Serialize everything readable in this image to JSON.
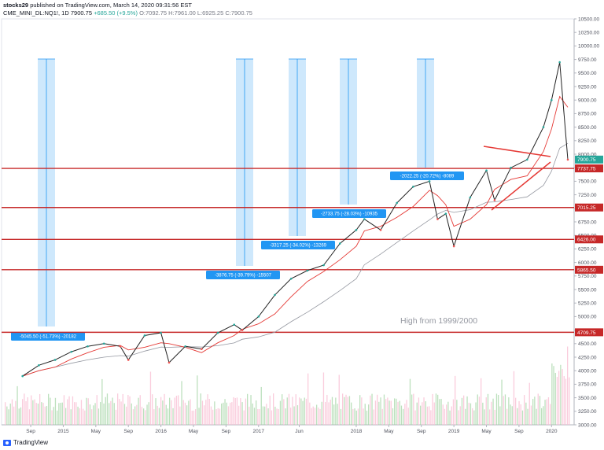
{
  "header": {
    "line1_user": "stocks29",
    "line1_rest": " published on TradingView.com, March 14, 2020 09:31:56 EST",
    "symbol": "CME_MINI_DL:NQ1!, 1D",
    "last": "7900.75",
    "change": "+685.50 (+9.5%)",
    "ohlc": "O:7092.75 H:7961.00 L:6925.25 C:7900.75"
  },
  "footer": {
    "brand": "TradingView"
  },
  "colors": {
    "up": "#26a69a",
    "down": "#ef5350",
    "hline": "#c62828",
    "blue": "#2196f3",
    "sma": "#9598a1",
    "ema": "#e53935"
  },
  "chart_data": {
    "type": "line",
    "ylim": [
      3000,
      10500
    ],
    "y_ticks": [
      "10500.00",
      "10250.00",
      "10000.00",
      "9750.00",
      "9500.00",
      "9250.00",
      "9000.00",
      "8750.00",
      "8500.00",
      "8250.00",
      "8000.00",
      "7750.00",
      "7500.00",
      "7250.00",
      "7000.00",
      "6750.00",
      "6500.00",
      "6250.00",
      "6000.00",
      "5750.00",
      "5500.00",
      "5250.00",
      "5000.00",
      "4750.00",
      "4500.00",
      "4250.00",
      "4000.00",
      "3750.00",
      "3500.00",
      "3250.00",
      "3000.00"
    ],
    "x_ticks": [
      "Sep",
      "2015",
      "May",
      "Sep",
      "2016",
      "May",
      "Sep",
      "2017",
      "Jun",
      "2018",
      "May",
      "Sep",
      "2019",
      "May",
      "Sep",
      "2020"
    ],
    "price_series": {
      "name": "NQ1!",
      "x": [
        "2014-08",
        "2014-10",
        "2014-12",
        "2015-02",
        "2015-04",
        "2015-06",
        "2015-08",
        "2015-09",
        "2015-11",
        "2016-01",
        "2016-02",
        "2016-04",
        "2016-06",
        "2016-08",
        "2016-10",
        "2016-11",
        "2017-01",
        "2017-03",
        "2017-05",
        "2017-07",
        "2017-09",
        "2017-11",
        "2018-01",
        "2018-02",
        "2018-04",
        "2018-06",
        "2018-08",
        "2018-10",
        "2018-11",
        "2018-12",
        "2019-01",
        "2019-03",
        "2019-05",
        "2019-06",
        "2019-08",
        "2019-10",
        "2019-12",
        "2020-01",
        "2020-02",
        "2020-03"
      ],
      "y": [
        3900,
        4100,
        4200,
        4350,
        4450,
        4500,
        4450,
        4200,
        4650,
        4700,
        4150,
        4450,
        4400,
        4700,
        4850,
        4750,
        5000,
        5400,
        5700,
        5850,
        5950,
        6350,
        6600,
        6800,
        6600,
        7100,
        7400,
        7500,
        6800,
        6900,
        6300,
        7200,
        7700,
        7150,
        7750,
        7900,
        8500,
        9000,
        9700,
        7900
      ]
    },
    "horizontal_levels": [
      {
        "value": 7737.75,
        "label": "7737.75"
      },
      {
        "value": 7015.25,
        "label": "7015.25"
      },
      {
        "value": 6426.0,
        "label": "6426.00"
      },
      {
        "value": 5865.5,
        "label": "5865.50"
      },
      {
        "value": 4709.75,
        "label": "4709.75"
      }
    ],
    "current_price_label": "7900.75",
    "drawdowns": [
      {
        "label": "-5045.50 (-51.73%) -20182"
      },
      {
        "label": "-3876.75 (-39.79%) -15507"
      },
      {
        "label": "-3317.25 (-34.02%) -13269"
      },
      {
        "label": "-2733.75 (-28.03%) -10935"
      },
      {
        "label": "-2022.25 (-20.72%) -8089"
      }
    ],
    "annotation": "High from 1999/2000"
  }
}
